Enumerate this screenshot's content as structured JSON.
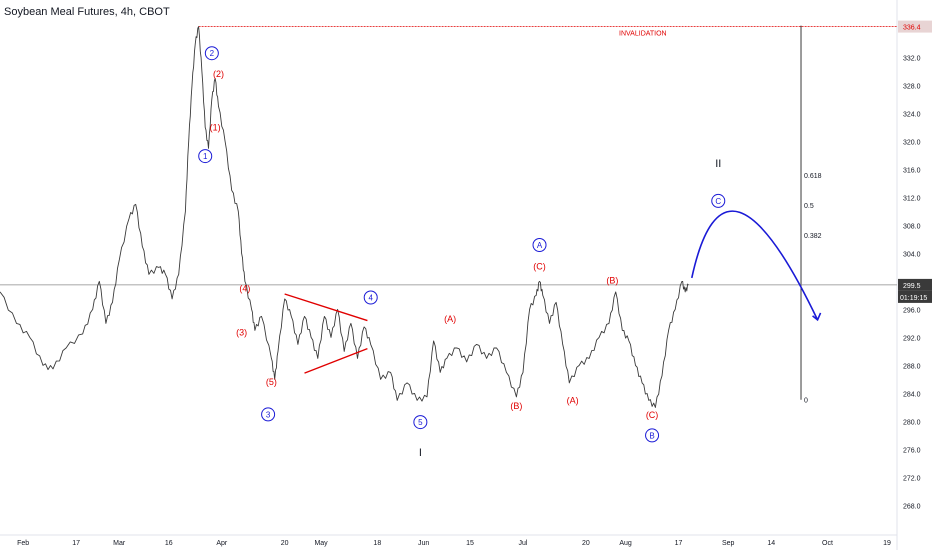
{
  "header": {
    "title": "Soybean Meal Futures, 4h, CBOT"
  },
  "chart_data": {
    "type": "line",
    "symbol": "Soybean Meal Futures",
    "timeframe": "4h",
    "exchange": "CBOT",
    "xlim": [
      "2020-01-25",
      "2020-10-22"
    ],
    "ylim": [
      264.2,
      338.2
    ],
    "y_ticks": [
      268.0,
      272.0,
      276.0,
      280.0,
      284.0,
      288.0,
      292.0,
      296.0,
      304.0,
      308.0,
      312.0,
      316.0,
      320.0,
      324.0,
      328.0,
      332.0
    ],
    "x_ticks": [
      {
        "label": "Feb",
        "date": "2020-02-01"
      },
      {
        "label": "17",
        "date": "2020-02-17"
      },
      {
        "label": "Mar",
        "date": "2020-03-01"
      },
      {
        "label": "16",
        "date": "2020-03-16"
      },
      {
        "label": "Apr",
        "date": "2020-04-01"
      },
      {
        "label": "20",
        "date": "2020-04-20"
      },
      {
        "label": "May",
        "date": "2020-05-01"
      },
      {
        "label": "18",
        "date": "2020-05-18"
      },
      {
        "label": "Jun",
        "date": "2020-06-01"
      },
      {
        "label": "15",
        "date": "2020-06-15"
      },
      {
        "label": "Jul",
        "date": "2020-07-01"
      },
      {
        "label": "20",
        "date": "2020-07-20"
      },
      {
        "label": "Aug",
        "date": "2020-08-01"
      },
      {
        "label": "17",
        "date": "2020-08-17"
      },
      {
        "label": "Sep",
        "date": "2020-09-01"
      },
      {
        "label": "14",
        "date": "2020-09-14"
      },
      {
        "label": "Oct",
        "date": "2020-10-01"
      },
      {
        "label": "19",
        "date": "2020-10-19"
      }
    ],
    "series": [
      {
        "points": [
          [
            "2020-01-25",
            298.5
          ],
          [
            "2020-01-30",
            294.0
          ],
          [
            "2020-02-03",
            292.0
          ],
          [
            "2020-02-07",
            288.0
          ],
          [
            "2020-02-10",
            287.5
          ],
          [
            "2020-02-14",
            290.5
          ],
          [
            "2020-02-19",
            292.5
          ],
          [
            "2020-02-22",
            296.0
          ],
          [
            "2020-02-24",
            300.0
          ],
          [
            "2020-02-26",
            294.0
          ],
          [
            "2020-02-28",
            297.0
          ],
          [
            "2020-03-01",
            303.0
          ],
          [
            "2020-03-04",
            309.0
          ],
          [
            "2020-03-06",
            311.0
          ],
          [
            "2020-03-08",
            305.0
          ],
          [
            "2020-03-10",
            301.0
          ],
          [
            "2020-03-13",
            302.0
          ],
          [
            "2020-03-15",
            301.0
          ],
          [
            "2020-03-17",
            297.5
          ],
          [
            "2020-03-19",
            301.0
          ],
          [
            "2020-03-21",
            310.0
          ],
          [
            "2020-03-22",
            320.0
          ],
          [
            "2020-03-23",
            328.0
          ],
          [
            "2020-03-24",
            334.0
          ],
          [
            "2020-03-25",
            336.4
          ],
          [
            "2020-03-26",
            330.0
          ],
          [
            "2020-03-27",
            322.0
          ],
          [
            "2020-03-28",
            319.0
          ],
          [
            "2020-03-29",
            326.0
          ],
          [
            "2020-03-30",
            329.0
          ],
          [
            "2020-03-31",
            325.0
          ],
          [
            "2020-04-02",
            320.0
          ],
          [
            "2020-04-04",
            313.0
          ],
          [
            "2020-04-06",
            310.0
          ],
          [
            "2020-04-07",
            304.0
          ],
          [
            "2020-04-08",
            300.0
          ],
          [
            "2020-04-10",
            296.0
          ],
          [
            "2020-04-11",
            293.0
          ],
          [
            "2020-04-13",
            295.0
          ],
          [
            "2020-04-16",
            289.0
          ],
          [
            "2020-04-17",
            286.0
          ],
          [
            "2020-04-18",
            290.0
          ],
          [
            "2020-04-20",
            297.5
          ],
          [
            "2020-04-22",
            295.0
          ],
          [
            "2020-04-24",
            291.0
          ],
          [
            "2020-04-26",
            295.0
          ],
          [
            "2020-04-28",
            292.0
          ],
          [
            "2020-04-30",
            289.0
          ],
          [
            "2020-05-02",
            295.0
          ],
          [
            "2020-05-04",
            292.0
          ],
          [
            "2020-05-06",
            296.0
          ],
          [
            "2020-05-08",
            290.0
          ],
          [
            "2020-05-10",
            294.0
          ],
          [
            "2020-05-12",
            289.0
          ],
          [
            "2020-05-14",
            293.5
          ],
          [
            "2020-05-16",
            291.0
          ],
          [
            "2020-05-19",
            286.0
          ],
          [
            "2020-05-22",
            287.0
          ],
          [
            "2020-05-24",
            283.0
          ],
          [
            "2020-05-27",
            285.5
          ],
          [
            "2020-05-30",
            283.0
          ],
          [
            "2020-06-02",
            283.5
          ],
          [
            "2020-06-04",
            291.5
          ],
          [
            "2020-06-06",
            287.0
          ],
          [
            "2020-06-08",
            289.0
          ],
          [
            "2020-06-11",
            290.5
          ],
          [
            "2020-06-14",
            288.5
          ],
          [
            "2020-06-17",
            291.0
          ],
          [
            "2020-06-20",
            289.0
          ],
          [
            "2020-06-23",
            290.5
          ],
          [
            "2020-06-26",
            287.0
          ],
          [
            "2020-06-29",
            283.5
          ],
          [
            "2020-07-01",
            287.0
          ],
          [
            "2020-07-03",
            296.0
          ],
          [
            "2020-07-05",
            298.0
          ],
          [
            "2020-07-06",
            300.0
          ],
          [
            "2020-07-07",
            298.0
          ],
          [
            "2020-07-09",
            294.0
          ],
          [
            "2020-07-11",
            297.0
          ],
          [
            "2020-07-13",
            291.0
          ],
          [
            "2020-07-15",
            285.5
          ],
          [
            "2020-07-18",
            288.0
          ],
          [
            "2020-07-21",
            289.0
          ],
          [
            "2020-07-24",
            292.0
          ],
          [
            "2020-07-27",
            294.0
          ],
          [
            "2020-07-29",
            298.5
          ],
          [
            "2020-07-31",
            293.0
          ],
          [
            "2020-08-02",
            291.5
          ],
          [
            "2020-08-04",
            288.0
          ],
          [
            "2020-08-06",
            285.5
          ],
          [
            "2020-08-08",
            283.0
          ],
          [
            "2020-08-10",
            282.0
          ],
          [
            "2020-08-12",
            286.5
          ],
          [
            "2020-08-14",
            293.0
          ],
          [
            "2020-08-16",
            296.0
          ],
          [
            "2020-08-18",
            300.0
          ],
          [
            "2020-08-19",
            298.5
          ],
          [
            "2020-08-20",
            299.5
          ]
        ]
      }
    ],
    "last_price": "299.5",
    "countdown": "01:19:15",
    "invalidation": {
      "label": "INVALIDATION",
      "price": 336.4,
      "price_label": "336.4",
      "from": "2020-03-25",
      "to": "2020-10-19"
    },
    "fib_levels": [
      {
        "label": "0.618",
        "price": 315.2
      },
      {
        "label": "0.5",
        "price": 310.9
      },
      {
        "label": "0.382",
        "price": 306.6
      },
      {
        "label": "0",
        "price": 283.1
      }
    ],
    "fib_line_date": "2020-09-23",
    "triangle_lines": [
      {
        "from": [
          "2020-04-20",
          298.2
        ],
        "to": [
          "2020-05-15",
          294.4
        ]
      },
      {
        "from": [
          "2020-04-26",
          286.9
        ],
        "to": [
          "2020-05-15",
          290.4
        ]
      }
    ],
    "projection": {
      "start": [
        "2020-08-21",
        300.5
      ],
      "control": [
        "2020-08-31",
        316.5
      ],
      "end": [
        "2020-09-28",
        294.5
      ]
    },
    "wave_labels": [
      {
        "text": "1",
        "style": "circle",
        "color": "#1a1ad6",
        "date": "2020-03-27",
        "price": 317.9
      },
      {
        "text": "2",
        "style": "circle",
        "color": "#1a1ad6",
        "date": "2020-03-29",
        "price": 332.6
      },
      {
        "text": "(2)",
        "style": "plain",
        "color": "#e00000",
        "date": "2020-03-31",
        "price": 329.6
      },
      {
        "text": "(1)",
        "style": "plain",
        "color": "#e00000",
        "date": "2020-03-30",
        "price": 322.0
      },
      {
        "text": "(4)",
        "style": "plain",
        "color": "#e00000",
        "date": "2020-04-08",
        "price": 299.0
      },
      {
        "text": "(3)",
        "style": "plain",
        "color": "#e00000",
        "date": "2020-04-07",
        "price": 292.7
      },
      {
        "text": "(5)",
        "style": "plain",
        "color": "#e00000",
        "date": "2020-04-16",
        "price": 285.6
      },
      {
        "text": "3",
        "style": "circle",
        "color": "#1a1ad6",
        "date": "2020-04-15",
        "price": 281.0
      },
      {
        "text": "4",
        "style": "circle",
        "color": "#1a1ad6",
        "date": "2020-05-16",
        "price": 297.7
      },
      {
        "text": "5",
        "style": "circle",
        "color": "#1a1ad6",
        "date": "2020-05-31",
        "price": 279.9
      },
      {
        "text": "I",
        "style": "plain",
        "color": "#131722",
        "date": "2020-05-31",
        "price": 275.5
      },
      {
        "text": "(A)",
        "style": "plain",
        "color": "#e00000",
        "date": "2020-06-09",
        "price": 294.6
      },
      {
        "text": "(B)",
        "style": "plain",
        "color": "#e00000",
        "date": "2020-06-29",
        "price": 282.2
      },
      {
        "text": "A",
        "style": "circle",
        "color": "#1a1ad6",
        "date": "2020-07-06",
        "price": 305.2
      },
      {
        "text": "(C)",
        "style": "plain",
        "color": "#e00000",
        "date": "2020-07-06",
        "price": 302.1
      },
      {
        "text": "(A)",
        "style": "plain",
        "color": "#e00000",
        "date": "2020-07-16",
        "price": 283.0
      },
      {
        "text": "(B)",
        "style": "plain",
        "color": "#e00000",
        "date": "2020-07-28",
        "price": 300.1
      },
      {
        "text": "(C)",
        "style": "plain",
        "color": "#e00000",
        "date": "2020-08-09",
        "price": 280.9
      },
      {
        "text": "B",
        "style": "circle",
        "color": "#1a1ad6",
        "date": "2020-08-09",
        "price": 278.0
      },
      {
        "text": "II",
        "style": "plain",
        "color": "#131722",
        "date": "2020-08-29",
        "price": 316.8
      },
      {
        "text": "C",
        "style": "circle",
        "color": "#1a1ad6",
        "date": "2020-08-29",
        "price": 311.5
      }
    ]
  },
  "colors": {
    "price_line": "#3a3a3a",
    "invalidation": "#e00000",
    "projection": "#1a1ad6",
    "triangle": "#e00000",
    "axis_text": "#131722",
    "price_label_bg": "#3a3a3a",
    "countdown_bg": "#3a3a3a",
    "invalidation_label_bg": "#e8d4d4"
  }
}
